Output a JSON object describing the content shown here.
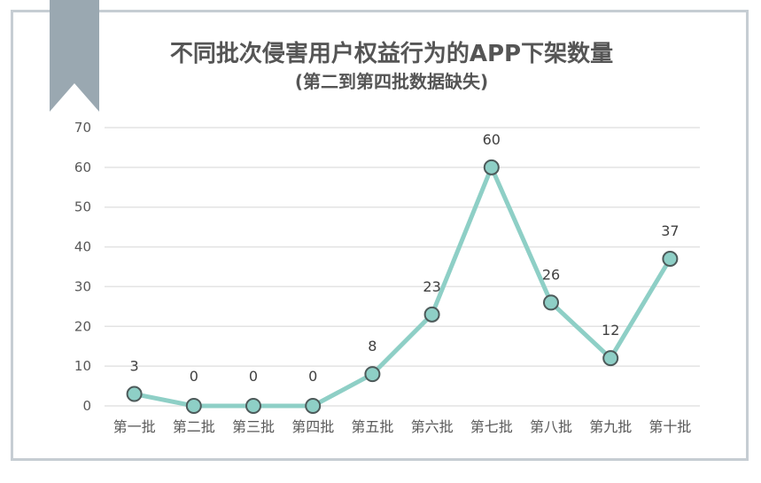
{
  "header": {
    "title": "不同批次侵害用户权益行为的APP下架数量",
    "subtitle": "(第二到第四批数据缺失)"
  },
  "decoration": {
    "ribbon_icon": "bookmark-ribbon-icon",
    "ribbon_color": "#9aa8b1",
    "frame_color": "#c6cdd3"
  },
  "colors": {
    "line": "#8ecfc6",
    "marker_fill": "#8ecfc6",
    "marker_stroke": "#4d5a5a",
    "gridline": "#e3e3e3",
    "text": "#595959"
  },
  "chart_data": {
    "type": "line",
    "title": "不同批次侵害用户权益行为的APP下架数量",
    "subtitle": "(第二到第四批数据缺失)",
    "categories": [
      "第一批",
      "第二批",
      "第三批",
      "第四批",
      "第五批",
      "第六批",
      "第七批",
      "第八批",
      "第九批",
      "第十批"
    ],
    "series": [
      {
        "name": "APP下架数量",
        "values": [
          3,
          0,
          0,
          0,
          8,
          23,
          60,
          26,
          12,
          37
        ]
      }
    ],
    "data_labels": [
      "3",
      "0",
      "0",
      "0",
      "8",
      "23",
      "60",
      "26",
      "12",
      "37"
    ],
    "xlabel": "",
    "ylabel": "",
    "ylim": [
      0,
      70
    ],
    "yticks": [
      0,
      10,
      20,
      30,
      40,
      50,
      60,
      70
    ],
    "grid": true,
    "legend": "none",
    "markers": true
  }
}
